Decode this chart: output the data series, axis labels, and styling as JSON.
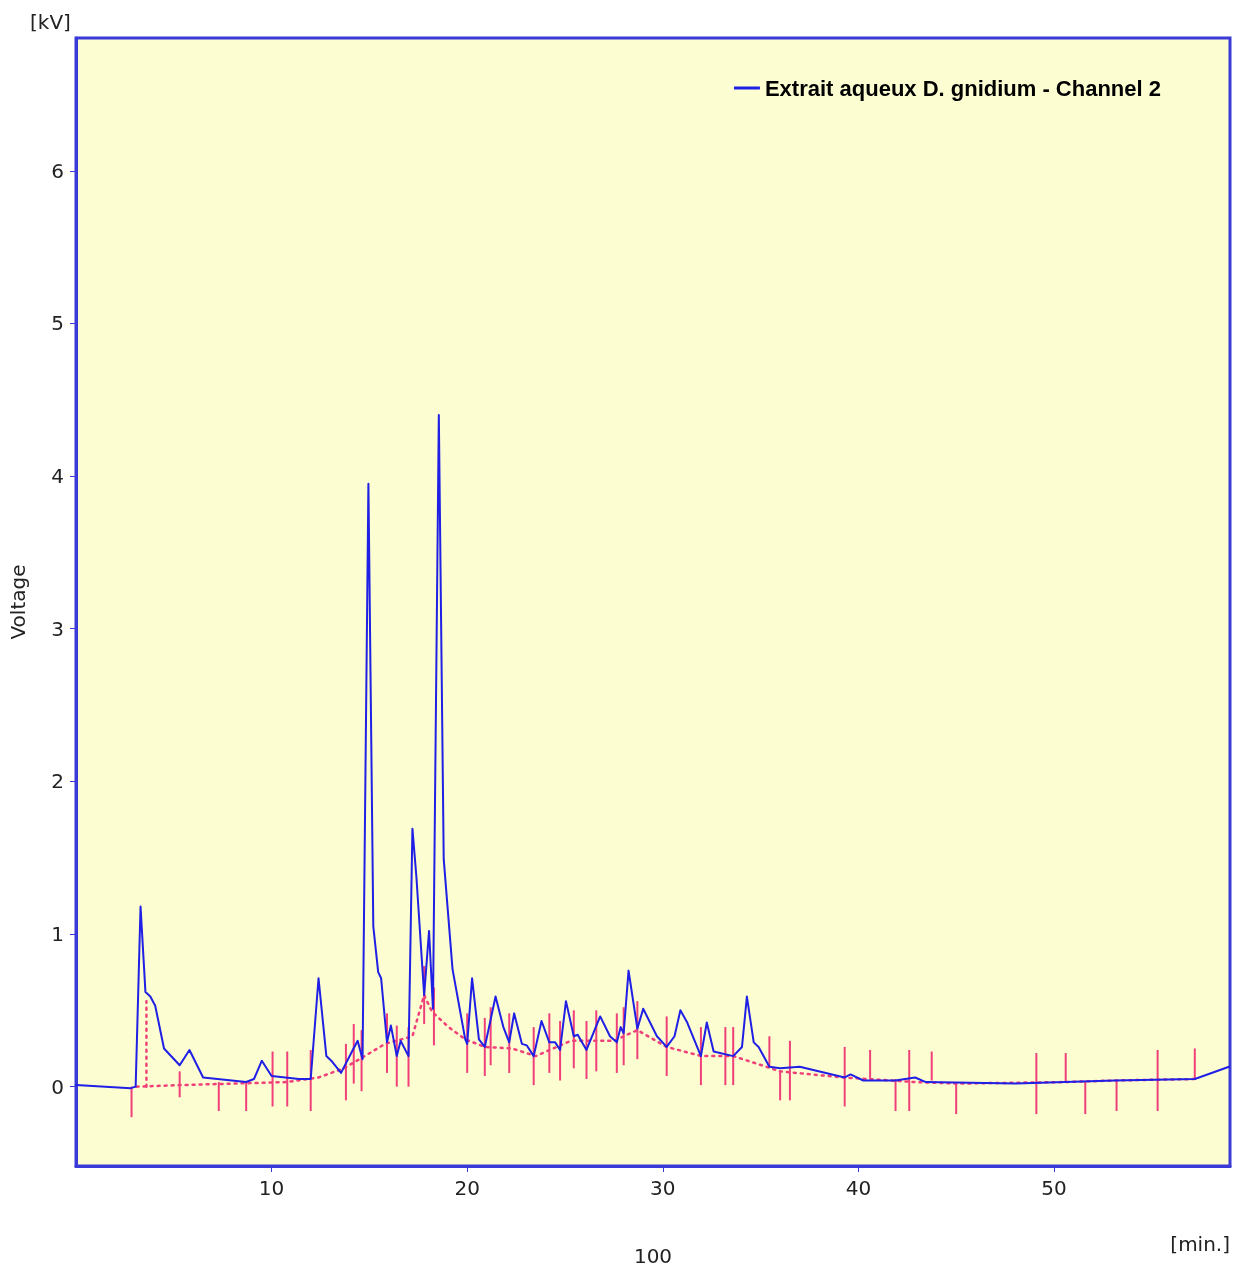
{
  "chart_data": {
    "type": "line",
    "xlabel": "100",
    "ylabel": "Voltage",
    "annotations": [
      "[kV]",
      "[min.]"
    ],
    "xlim": [
      0,
      59
    ],
    "ylim": [
      -0.52,
      6.87
    ],
    "xticks": [
      10,
      20,
      30,
      40,
      50
    ],
    "yticks": [
      0,
      1,
      2,
      3,
      4,
      5,
      6
    ],
    "grid": false,
    "legend": "top right",
    "marker": "none",
    "series": [
      {
        "name": "Extrait aqueux D. gnidium - Channel 2",
        "color": "#1f1fe6",
        "line_style": "solid",
        "x": [
          0,
          1.5,
          2.8,
          3.05,
          3.3,
          3.55,
          3.8,
          4.05,
          4.5,
          5.3,
          5.8,
          6.5,
          8.7,
          9.1,
          9.5,
          10.0,
          11.4,
          12.0,
          12.4,
          12.8,
          13.05,
          13.55,
          14.15,
          14.4,
          14.65,
          14.95,
          15.2,
          15.45,
          15.6,
          15.9,
          16.1,
          16.4,
          16.6,
          17.0,
          17.2,
          17.4,
          17.8,
          18.05,
          18.25,
          18.55,
          18.8,
          19.25,
          19.9,
          20.0,
          20.25,
          20.6,
          20.9,
          21.1,
          21.45,
          21.85,
          22.15,
          22.4,
          22.8,
          23.05,
          23.4,
          23.8,
          24.2,
          24.5,
          24.75,
          25.05,
          25.45,
          25.65,
          26.1,
          26.8,
          27.3,
          27.65,
          27.85,
          28.0,
          28.25,
          28.7,
          29.0,
          29.7,
          30.2,
          30.6,
          30.9,
          31.25,
          31.95,
          32.25,
          32.6,
          33.6,
          34.05,
          34.3,
          34.65,
          34.9,
          35.45,
          36.0,
          37.0,
          39.3,
          39.6,
          40.25,
          41.9,
          42.9,
          43.45,
          48.0,
          53.1,
          57.2,
          58.95
        ],
        "values": [
          0.01,
          0.0,
          -0.01,
          0.0,
          1.18,
          0.62,
          0.59,
          0.53,
          0.25,
          0.14,
          0.24,
          0.06,
          0.03,
          0.05,
          0.17,
          0.07,
          0.05,
          0.05,
          0.71,
          0.2,
          0.17,
          0.09,
          0.24,
          0.3,
          0.18,
          3.95,
          1.05,
          0.75,
          0.71,
          0.29,
          0.4,
          0.2,
          0.3,
          0.2,
          1.69,
          1.38,
          0.6,
          1.02,
          0.51,
          4.4,
          1.49,
          0.77,
          0.31,
          0.28,
          0.71,
          0.31,
          0.26,
          0.38,
          0.59,
          0.39,
          0.29,
          0.48,
          0.28,
          0.27,
          0.2,
          0.43,
          0.29,
          0.29,
          0.24,
          0.56,
          0.33,
          0.34,
          0.24,
          0.46,
          0.33,
          0.29,
          0.39,
          0.35,
          0.76,
          0.38,
          0.51,
          0.33,
          0.26,
          0.33,
          0.5,
          0.42,
          0.2,
          0.42,
          0.23,
          0.2,
          0.26,
          0.59,
          0.29,
          0.26,
          0.13,
          0.12,
          0.13,
          0.06,
          0.08,
          0.04,
          0.04,
          0.06,
          0.03,
          0.02,
          0.04,
          0.05,
          0.13
        ]
      },
      {
        "color": "#f0407a",
        "line_style": "dotted",
        "x": [
          3.1,
          5.3,
          10.8,
          12.4,
          13.7,
          14.5,
          15.8,
          17.2,
          17.8,
          18.2,
          19.05,
          19.9,
          20.9,
          22.3,
          23.5,
          25.3,
          27.5,
          28.7,
          30.2,
          32.0,
          33.6,
          35.3,
          36.0,
          39.2,
          42.9,
          45.0,
          50.6,
          53.1,
          57.2
        ],
        "values": [
          0.0,
          0.01,
          0.03,
          0.06,
          0.12,
          0.18,
          0.28,
          0.33,
          0.6,
          0.49,
          0.39,
          0.31,
          0.26,
          0.25,
          0.2,
          0.3,
          0.3,
          0.37,
          0.26,
          0.2,
          0.2,
          0.13,
          0.1,
          0.06,
          0.03,
          0.02,
          0.03,
          0.04,
          0.05
        ]
      },
      {
        "color": "#f0407a",
        "line_style": "dotted",
        "x": [
          3.6,
          3.6
        ],
        "values": [
          0.0,
          0.56
        ]
      },
      {
        "type": "bar",
        "color": "#f0407a",
        "x": [
          2.84,
          5.3,
          7.3,
          8.7,
          10.05,
          10.8,
          12.0,
          13.8,
          14.2,
          14.6,
          15.9,
          16.4,
          17.0,
          17.8,
          18.3,
          20.0,
          20.9,
          21.2,
          22.15,
          23.4,
          24.2,
          24.75,
          25.45,
          26.1,
          26.6,
          27.65,
          28.0,
          28.7,
          30.2,
          31.95,
          33.2,
          33.6,
          35.45,
          36.0,
          36.5,
          39.3,
          40.6,
          41.9,
          42.6,
          43.75,
          45.0,
          49.1,
          50.6,
          51.6,
          53.2,
          55.3,
          57.2
        ],
        "base": [
          -0.2,
          -0.07,
          -0.16,
          -0.16,
          -0.13,
          -0.13,
          -0.16,
          -0.09,
          0.02,
          -0.03,
          0.09,
          0.0,
          0.0,
          0.41,
          0.27,
          0.09,
          0.07,
          0.14,
          0.09,
          0.01,
          0.09,
          0.04,
          0.12,
          0.05,
          0.1,
          0.09,
          0.14,
          0.18,
          0.07,
          0.01,
          0.01,
          0.01,
          0.13,
          -0.09,
          -0.09,
          -0.13,
          0.05,
          -0.16,
          -0.16,
          0.04,
          -0.18,
          -0.18,
          0.03,
          -0.18,
          -0.16,
          -0.16,
          0.05
        ],
        "values": [
          0.2,
          0.17,
          0.19,
          0.19,
          0.36,
          0.36,
          0.4,
          0.37,
          0.39,
          0.4,
          0.39,
          0.4,
          0.39,
          0.38,
          0.38,
          0.39,
          0.38,
          0.38,
          0.39,
          0.38,
          0.39,
          0.39,
          0.38,
          0.38,
          0.4,
          0.39,
          0.38,
          0.38,
          0.39,
          0.38,
          0.38,
          0.38,
          0.2,
          0.19,
          0.39,
          0.39,
          0.19,
          0.21,
          0.4,
          0.19,
          0.21,
          0.4,
          0.19,
          0.21,
          0.2,
          0.4,
          0.2
        ]
      }
    ]
  }
}
